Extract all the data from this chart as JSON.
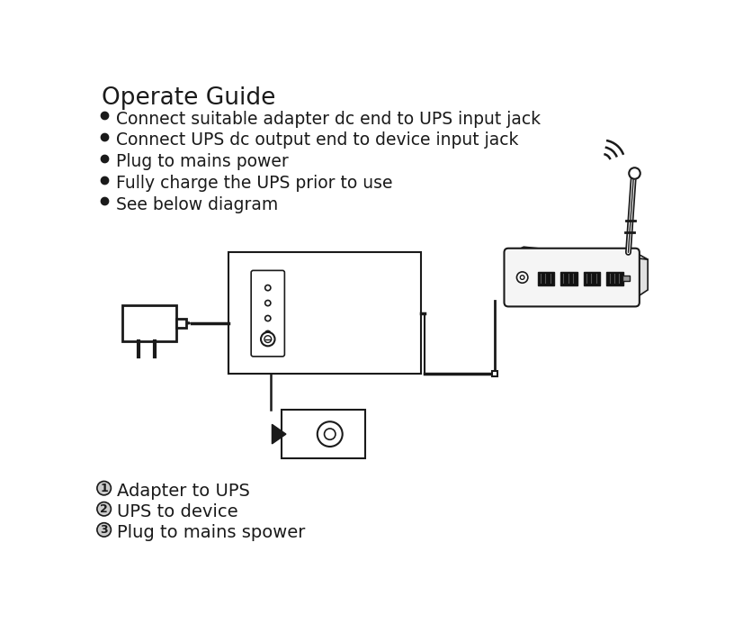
{
  "title": "Operate Guide",
  "bullets": [
    "Connect suitable adapter dc end to UPS input jack",
    "Connect UPS dc output end to device input jack",
    "Plug to mains power",
    "Fully charge the UPS prior to use",
    "See below diagram"
  ],
  "footnotes": [
    [
      "1",
      "Adapter to UPS"
    ],
    [
      "2",
      "UPS to device"
    ],
    [
      "3",
      "Plug to mains spower"
    ]
  ],
  "bg_color": "#ffffff",
  "text_color": "#1a1a1a",
  "line_color": "#1a1a1a",
  "light_gray": "#cccccc",
  "mid_gray": "#888888"
}
